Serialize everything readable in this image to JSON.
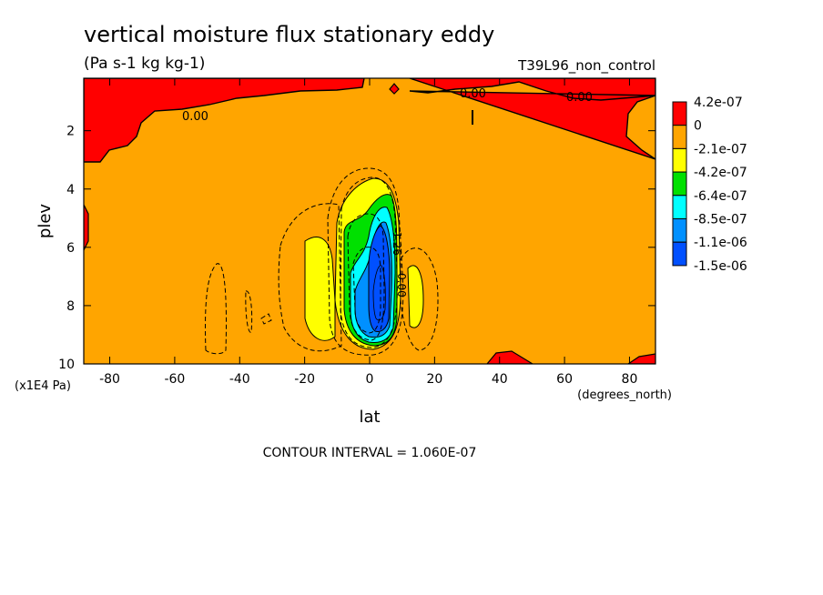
{
  "chart_data": {
    "type": "heatmap",
    "title": "vertical moisture flux stationary eddy",
    "units_label": "(Pa s-1 kg kg-1)",
    "run_label": "T39L96_non_control",
    "xlabel": "lat",
    "x_units": "(degrees_north)",
    "ylabel": "plev",
    "y_units": "(x1E4 Pa)",
    "xlim": [
      -88,
      88
    ],
    "ylim": [
      10,
      0.2
    ],
    "x_ticks": [
      -80,
      -60,
      -40,
      -20,
      0,
      20,
      40,
      60,
      80
    ],
    "y_ticks": [
      2,
      4,
      6,
      8,
      10
    ],
    "contour_interval_label": "CONTOUR INTERVAL = 1.060E-07",
    "contour_labels": [
      "0.00",
      "0.00",
      "0.00",
      "0.00",
      "-1.26",
      "-1.26"
    ],
    "colorbar": {
      "labels": [
        "4.2e-07",
        "0",
        "-2.1e-07",
        "-4.2e-07",
        "-6.4e-07",
        "-8.5e-07",
        "-1.1e-06",
        "-1.5e-06"
      ],
      "colors": [
        "#ff0000",
        "#ffa500",
        "#ffff00",
        "#00e000",
        "#00ffff",
        "#0090ff",
        "#0050ff"
      ]
    },
    "background_level": "-2.1e-07 to 0",
    "features": [
      {
        "name": "core minimum",
        "lat": 3,
        "plev": 8,
        "value": "-1.5e-06"
      },
      {
        "name": "upper positive band",
        "plev_range": [
          0.2,
          3
        ],
        "value": "0 to 4.2e-07"
      },
      {
        "name": "flank minimum",
        "lat": -20,
        "plev": 7.5,
        "value": "-4.2e-07"
      },
      {
        "name": "flank minimum",
        "lat": 15,
        "plev": 8,
        "value": "-4.2e-07"
      }
    ]
  }
}
